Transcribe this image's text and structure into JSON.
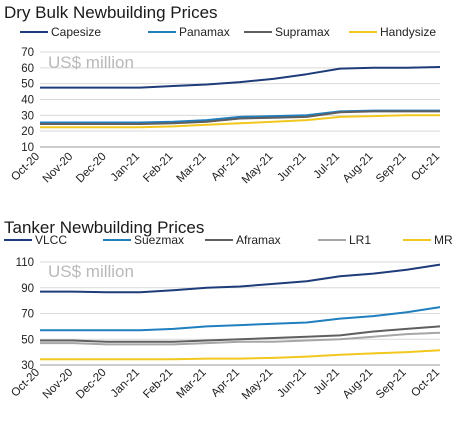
{
  "chart_data": [
    {
      "type": "line",
      "title": "Dry Bulk Newbuilding Prices",
      "unit_label": "US$ million",
      "x": [
        "Oct-20",
        "Nov-20",
        "Dec-20",
        "Jan-21",
        "Feb-21",
        "Mar-21",
        "Apr-21",
        "May-21",
        "Jun-21",
        "Jul-21",
        "Aug-21",
        "Sep-21",
        "Oct-21"
      ],
      "ylim": [
        10,
        70
      ],
      "yticks": [
        10,
        20,
        30,
        40,
        50,
        60,
        70
      ],
      "grid": true,
      "legend": "top",
      "series": [
        {
          "name": "Capesize",
          "color": "#1f3c7a",
          "values": [
            47.5,
            47.5,
            47.5,
            47.5,
            48.5,
            49.5,
            51,
            53,
            56,
            59.5,
            60,
            60,
            60.5
          ]
        },
        {
          "name": "Panamax",
          "color": "#1f7fbf",
          "values": [
            25.5,
            25.5,
            25.5,
            25.5,
            26,
            27,
            29,
            29.5,
            30,
            32.5,
            33,
            33,
            33
          ]
        },
        {
          "name": "Supramax",
          "color": "#5f5f5f",
          "values": [
            24.5,
            24.5,
            24.5,
            24.5,
            25,
            26,
            28,
            28.5,
            29,
            32,
            32.5,
            32.5,
            32.5
          ]
        },
        {
          "name": "Handysize",
          "color": "#f2c81e",
          "values": [
            22.5,
            22.5,
            22.5,
            22.5,
            23,
            24,
            25,
            26,
            27,
            29,
            29.5,
            30,
            30
          ]
        }
      ]
    },
    {
      "type": "line",
      "title": "Tanker Newbuilding Prices",
      "unit_label": "US$ million",
      "x": [
        "Oct-20",
        "Nov-20",
        "Dec-20",
        "Jan-21",
        "Feb-21",
        "Mar-21",
        "Apr-21",
        "May-21",
        "Jun-21",
        "Jul-21",
        "Aug-21",
        "Sep-21",
        "Oct-21"
      ],
      "ylim": [
        30,
        110
      ],
      "yticks": [
        30,
        50,
        70,
        90,
        110
      ],
      "grid": true,
      "legend": "top",
      "series": [
        {
          "name": "VLCC",
          "color": "#1f3c7a",
          "values": [
            87,
            87,
            86.5,
            86.5,
            88,
            90,
            91,
            93,
            95,
            99,
            101,
            104,
            108
          ]
        },
        {
          "name": "Suezmax",
          "color": "#1f7fbf",
          "values": [
            57,
            57,
            57,
            57,
            58,
            60,
            61,
            62,
            63,
            66,
            68,
            71,
            75
          ]
        },
        {
          "name": "Aframax",
          "color": "#5f5f5f",
          "values": [
            49,
            49,
            48,
            48,
            48,
            49,
            50,
            51,
            52,
            53,
            56,
            58,
            60
          ]
        },
        {
          "name": "LR1",
          "color": "#a6a6a6",
          "values": [
            47,
            47,
            46,
            46,
            46,
            47,
            48,
            48,
            49,
            50,
            52,
            54,
            55
          ]
        },
        {
          "name": "MR",
          "color": "#f2c81e",
          "values": [
            34.5,
            34.5,
            34.5,
            34.5,
            34.5,
            35,
            35,
            35.5,
            36.5,
            38,
            39,
            40,
            41.5
          ]
        }
      ]
    }
  ]
}
